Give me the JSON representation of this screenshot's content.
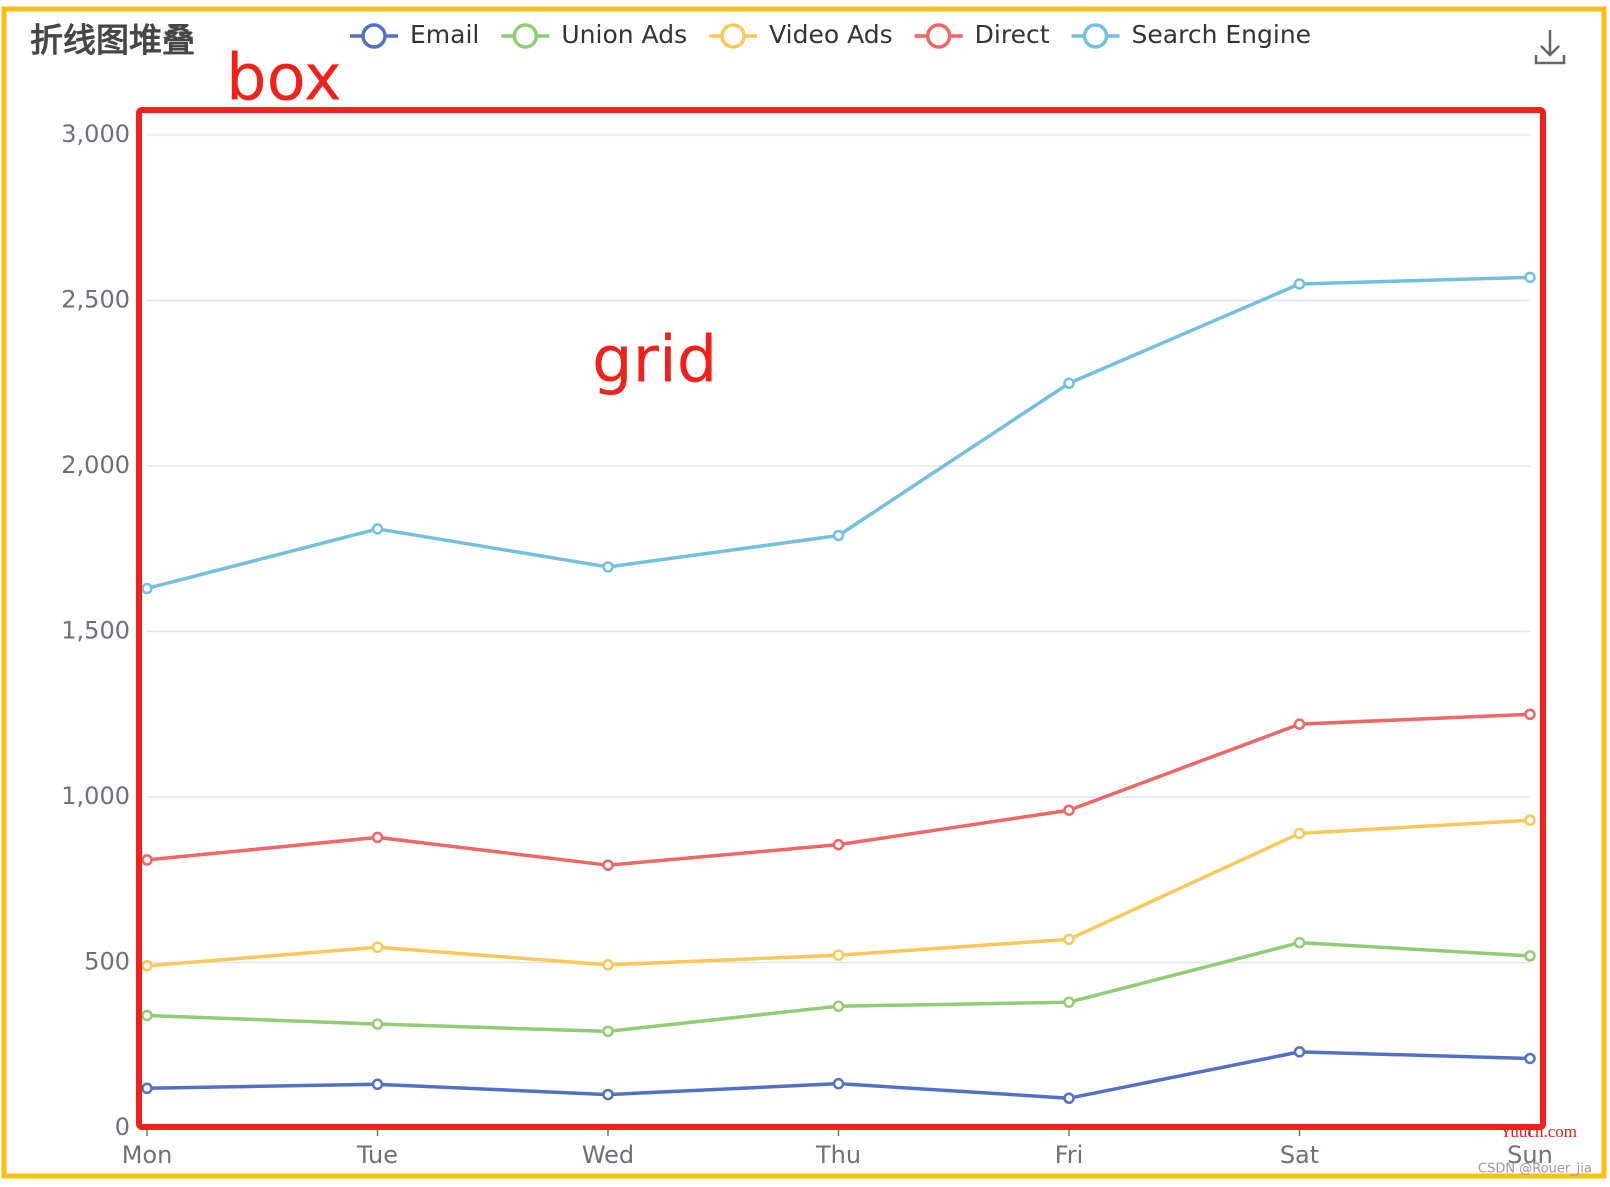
{
  "chart_data": {
    "type": "line",
    "stack": true,
    "title": "折线图堆叠",
    "annotations": [
      "box",
      "grid",
      "Yuucn.com",
      "CSDN @Rouer_jia"
    ],
    "categories": [
      "Mon",
      "Tue",
      "Wed",
      "Thu",
      "Fri",
      "Sat",
      "Sun"
    ],
    "series": [
      {
        "name": "Email",
        "color": "#5470c6",
        "values": [
          120,
          132,
          101,
          134,
          90,
          230,
          210
        ]
      },
      {
        "name": "Union Ads",
        "color": "#91cc75",
        "values": [
          220,
          182,
          191,
          234,
          290,
          330,
          310
        ]
      },
      {
        "name": "Video Ads",
        "color": "#fac858",
        "values": [
          150,
          232,
          201,
          154,
          190,
          330,
          410
        ]
      },
      {
        "name": "Direct",
        "color": "#ee6666",
        "values": [
          320,
          332,
          301,
          334,
          390,
          330,
          320
        ]
      },
      {
        "name": "Search Engine",
        "color": "#73c0de",
        "values": [
          820,
          932,
          901,
          934,
          1290,
          1330,
          1320
        ]
      }
    ],
    "ylim": [
      0,
      3000
    ],
    "yticks": [
      0,
      500,
      {
        "value": 1000,
        "label": "1,000"
      },
      {
        "value": 1500,
        "label": "1,500"
      },
      {
        "value": 2000,
        "label": "2,000"
      },
      {
        "value": 2500,
        "label": "2,500"
      },
      {
        "value": 3000,
        "label": "3,000"
      }
    ],
    "grid": true
  }
}
